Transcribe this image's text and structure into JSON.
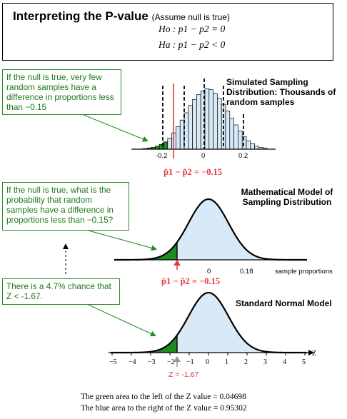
{
  "title": {
    "main": "Interpreting the P-value",
    "note": "(Assume null is true)",
    "h0": "Ho : p1 − p2 = 0",
    "ha": "Ha : p1 − p2 < 0"
  },
  "notes": [
    "If the null is true, very few random samples have a difference in proportions less than −0.15",
    "If the null is true, what is the probability that random samples have a difference in proportions less than −0.15?",
    "There is a 4.7% chance that Z < -1.67."
  ],
  "headings": {
    "simulated": "Simulated Sampling Distribution: Thousands of random samples",
    "mathematical": "Mathematical Model of Sampling Distribution",
    "standard": "Standard Normal Model"
  },
  "labels": {
    "diff": "p̂1 − p̂2 = −0.15",
    "z_value": "Z = -1.67",
    "z_axis": "Z",
    "sample_proportions": "sample proportions"
  },
  "histogram": {
    "ticks": [
      "-0.2",
      "0",
      "0.2"
    ],
    "bar_heights": [
      1,
      2,
      3,
      5,
      8,
      12,
      18,
      27,
      37,
      48,
      60,
      72,
      82,
      90,
      96,
      100,
      98,
      92,
      84,
      74,
      63,
      51,
      40,
      30,
      21,
      14,
      9,
      5,
      3,
      2
    ],
    "shaded_bar_count": 6,
    "colors": {
      "shaded": "#1f8a1f",
      "unshaded": "#d8eaf8",
      "outline": "#000000",
      "red_line": "#e0393e"
    }
  },
  "normal_model": {
    "ticks": [
      "0",
      "0.18"
    ],
    "colors": {
      "left_fill": "#1f8a1f",
      "right_fill": "#d8eaf8"
    }
  },
  "standard_normal": {
    "ticks": [
      "−5",
      "−4",
      "−3",
      "−2",
      "−1",
      "0",
      "1",
      "2",
      "3",
      "4",
      "5"
    ],
    "z_cutoff": -1.67
  },
  "footer": [
    "The green area to the left of the Z value = 0.04698",
    "The blue area to the right of the Z value = 0.95302"
  ]
}
